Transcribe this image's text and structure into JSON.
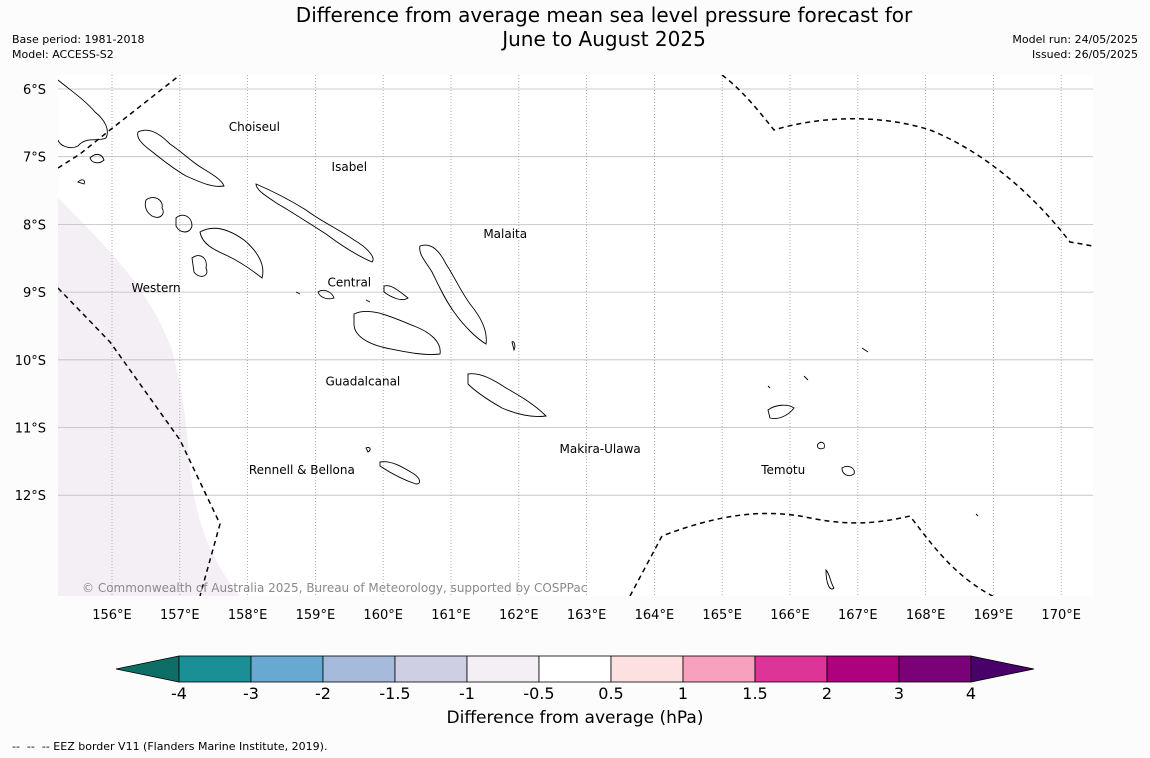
{
  "header": {
    "title_line1": "Difference from average mean sea level pressure forecast for",
    "title_line2": "June to August 2025",
    "base_period": "Base period: 1981-2018",
    "model": "Model: ACCESS-S2",
    "model_run": "Model run: 24/05/2025",
    "issued": "Issued: 26/05/2025"
  },
  "map": {
    "lat_labels": [
      "6°S",
      "7°S",
      "8°S",
      "9°S",
      "10°S",
      "11°S",
      "12°S"
    ],
    "lon_labels": [
      "156°E",
      "157°E",
      "158°E",
      "159°E",
      "160°E",
      "161°E",
      "162°E",
      "163°E",
      "164°E",
      "165°E",
      "166°E",
      "167°E",
      "168°E",
      "169°E",
      "170°E"
    ],
    "region_labels": [
      {
        "name": "Choiseul",
        "lon": 158.1,
        "lat": -6.62
      },
      {
        "name": "Isabel",
        "lon": 159.5,
        "lat": -7.21
      },
      {
        "name": "Malaita",
        "lon": 161.8,
        "lat": -8.2
      },
      {
        "name": "Western",
        "lon": 156.65,
        "lat": -9.0
      },
      {
        "name": "Central",
        "lon": 159.5,
        "lat": -8.92
      },
      {
        "name": "Guadalcanal",
        "lon": 159.7,
        "lat": -10.38
      },
      {
        "name": "Makira-Ulawa",
        "lon": 163.2,
        "lat": -11.38
      },
      {
        "name": "Rennell & Bellona",
        "lon": 158.8,
        "lat": -11.69
      },
      {
        "name": "Temotu",
        "lon": 165.9,
        "lat": -11.69
      }
    ],
    "copyright": "© Commonwealth of Australia 2025, Bureau of Meteorology, supported by COSPPac",
    "anomaly_fill_color": "#f4eef5",
    "eez_style": "dashed-black"
  },
  "colorbar": {
    "label": "Difference from average (hPa)",
    "ticks": [
      "-4",
      "-3",
      "-2",
      "-1.5",
      "-1",
      "-0.5",
      "0.5",
      "1",
      "1.5",
      "2",
      "3",
      "4"
    ],
    "colors": [
      "#1b8f96",
      "#68a9d1",
      "#a6badb",
      "#cfcfe4",
      "#f4eef5",
      "#ffffff",
      "#fde0e0",
      "#f8a1be",
      "#dd3497",
      "#ae017e",
      "#7a0177"
    ],
    "extend_low_color": "#0d6e66",
    "extend_high_color": "#49006a"
  },
  "footnote": "--  --  -- EEZ border V11 (Flanders Marine Institute, 2019)."
}
